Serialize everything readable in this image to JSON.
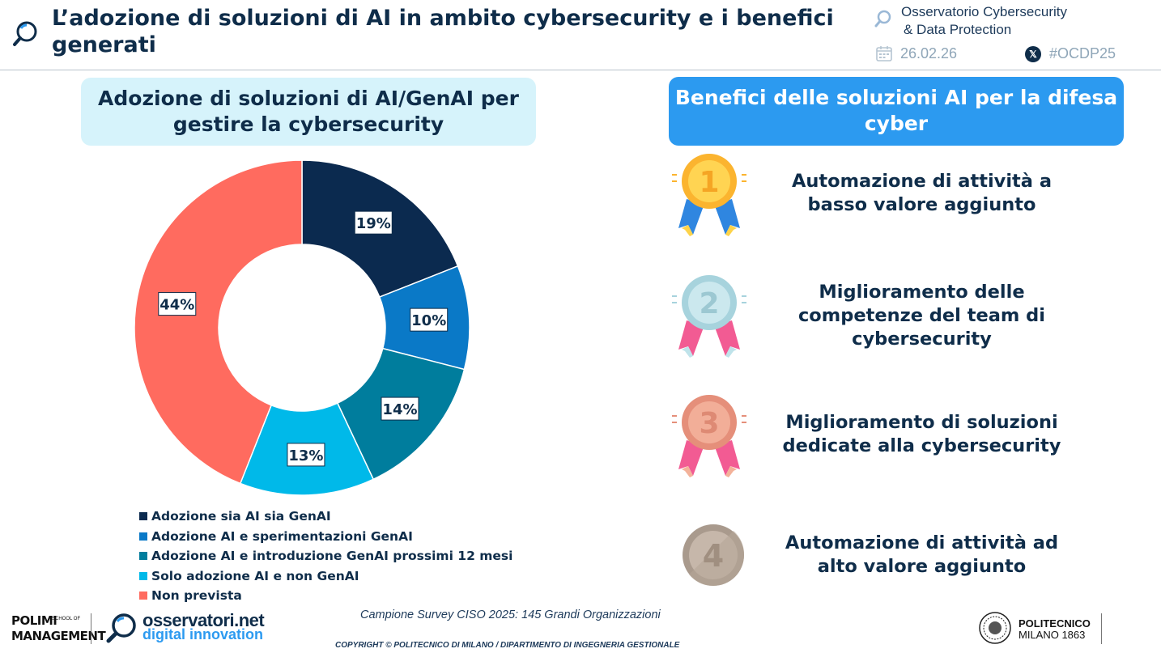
{
  "header": {
    "title": "L’adozione di soluzioni di AI in ambito cybersecurity e i benefici generati",
    "observatory_line1": "Osservatorio Cybersecurity",
    "observatory_line2": "& Data Protection",
    "date": "26.02.26",
    "hashtag": "#OCDP25",
    "icons": [
      "magnifier-icon",
      "calendar-icon",
      "x-logo-icon"
    ]
  },
  "left_panel": {
    "title": "Adozione di soluzioni di AI/GenAI per gestire la cybersecurity"
  },
  "chart_data": {
    "type": "pie",
    "donut": true,
    "title": "Adozione di soluzioni di AI/GenAI per gestire la cybersecurity",
    "legend_position": "bottom",
    "slices": [
      {
        "label": "Adozione sia AI sia GenAI",
        "value": 19,
        "display": "19%",
        "color": "#0b2a4f"
      },
      {
        "label": "Adozione AI e sperimentazioni GenAI",
        "value": 10,
        "display": "10%",
        "color": "#0a79c7"
      },
      {
        "label": "Adozione AI e introduzione GenAI prossimi 12 mesi",
        "value": 14,
        "display": "14%",
        "color": "#007d9d"
      },
      {
        "label": "Solo adozione AI e non GenAI",
        "value": 13,
        "display": "13%",
        "color": "#00b9e9"
      },
      {
        "label": "Non prevista",
        "value": 44,
        "display": "44%",
        "color": "#ff6b5f"
      }
    ]
  },
  "right_panel": {
    "title": "Benefici delle soluzioni AI per la difesa cyber",
    "benefits": [
      {
        "rank": "1",
        "text": "Automazione di attività a basso valore aggiunto",
        "medal_icon": "gold-medal-icon"
      },
      {
        "rank": "2",
        "text": "Miglioramento delle competenze del team di cybersecurity",
        "medal_icon": "silver-medal-icon"
      },
      {
        "rank": "3",
        "text": "Miglioramento di soluzioni dedicate alla cybersecurity",
        "medal_icon": "bronze-medal-icon"
      },
      {
        "rank": "4",
        "text": "Automazione di attività ad alto valore aggiunto",
        "medal_icon": "coin-medal-icon"
      }
    ]
  },
  "footer": {
    "sample": "Campione Survey CISO 2025: 145 Grandi Organizzazioni",
    "copyright": "COPYRIGHT © POLITECNICO DI MILANO / DIPARTIMENTO DI INGEGNERIA GESTIONALE",
    "polimi_line1": "POLIMI",
    "polimi_sub": "SCHOOL OF",
    "polimi_line2": "MANAGEMENT",
    "osservatori_name": "osservatori.net",
    "osservatori_sub": "digital innovation",
    "politecnico_line1": "POLITECNICO",
    "politecnico_line2": "MILANO 1863"
  }
}
